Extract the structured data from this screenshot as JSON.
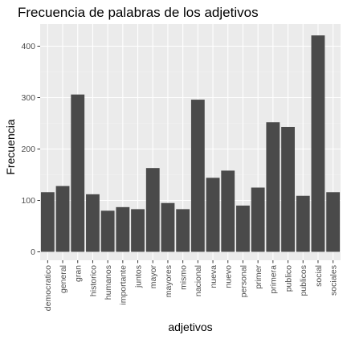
{
  "chart_data": {
    "type": "bar",
    "title": "Frecuencia de palabras de los adjetivos",
    "xlabel": "adjetivos",
    "ylabel": "Frecuencia",
    "categories": [
      "democratico",
      "general",
      "gran",
      "historico",
      "humanos",
      "importante",
      "juntos",
      "mayor",
      "mayores",
      "mismo",
      "nacional",
      "nueva",
      "nuevo",
      "personal",
      "primer",
      "primera",
      "publico",
      "publicos",
      "social",
      "sociales"
    ],
    "values": [
      116,
      128,
      306,
      112,
      80,
      87,
      83,
      163,
      95,
      83,
      296,
      144,
      158,
      90,
      125,
      252,
      243,
      109,
      421,
      116
    ],
    "yticks": [
      0,
      100,
      200,
      300,
      400
    ],
    "ylim": [
      -21,
      442
    ],
    "grid": true,
    "legend": "none",
    "colors": {
      "bar": "#4a4a4a",
      "panel": "#ebebeb",
      "grid_major": "#ffffff",
      "grid_minor": "#f4f4f4",
      "tick_text": "#4d4d4d",
      "tick_mark": "#333333"
    }
  }
}
